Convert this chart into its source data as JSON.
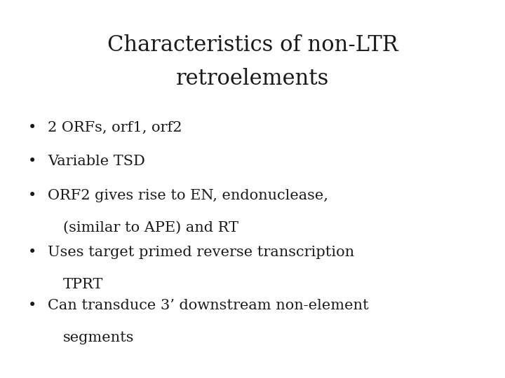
{
  "title_line1": "Characteristics of non-LTR",
  "title_line2": "retroelements",
  "bullets": [
    [
      "2 ORFs, orf1, orf2"
    ],
    [
      "Variable TSD"
    ],
    [
      "ORF2 gives rise to EN, endonuclease,",
      "(similar to APE) and RT"
    ],
    [
      "Uses target primed reverse transcription",
      "TPRT"
    ],
    [
      "Can transduce 3’ downstream non-element",
      "segments"
    ]
  ],
  "background_color": "#ffffff",
  "text_color": "#1a1a1a",
  "title_fontsize": 22,
  "bullet_fontsize": 15,
  "title_font": "DejaVu Serif",
  "bullet_font": "DejaVu Serif",
  "fig_width": 7.2,
  "fig_height": 5.4,
  "dpi": 100
}
